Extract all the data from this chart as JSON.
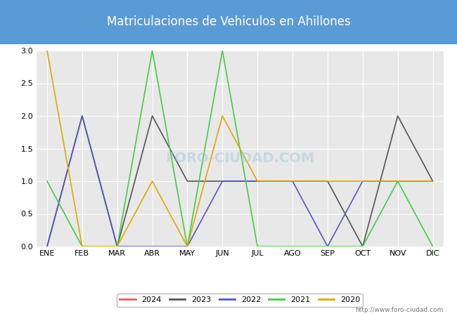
{
  "title": "Matriculaciones de Vehiculos en Ahillones",
  "months": [
    "ENE",
    "FEB",
    "MAR",
    "ABR",
    "MAY",
    "JUN",
    "JUL",
    "AGO",
    "SEP",
    "OCT",
    "NOV",
    "DIC"
  ],
  "series": {
    "2024": {
      "color": "#e06060",
      "data": [
        0,
        null,
        null,
        null,
        null,
        null,
        null,
        null,
        null,
        null,
        null,
        null
      ]
    },
    "2023": {
      "color": "#555555",
      "data": [
        0,
        2,
        0,
        2,
        1,
        1,
        1,
        1,
        1,
        0,
        2,
        1
      ]
    },
    "2022": {
      "color": "#5555cc",
      "data": [
        0,
        2,
        0,
        0,
        0,
        1,
        1,
        1,
        0,
        1,
        1,
        1
      ]
    },
    "2021": {
      "color": "#44cc44",
      "data": [
        1,
        0,
        0,
        3,
        0,
        3,
        0,
        0,
        0,
        0,
        1,
        0
      ]
    },
    "2020": {
      "color": "#ddaa00",
      "data": [
        3,
        0,
        0,
        1,
        0,
        2,
        1,
        1,
        1,
        1,
        1,
        1
      ]
    }
  },
  "ylim": [
    0.0,
    3.0
  ],
  "yticks": [
    0.0,
    0.5,
    1.0,
    1.5,
    2.0,
    2.5,
    3.0
  ],
  "title_bg_color": "#5b9bd5",
  "title_text_color": "#ffffff",
  "plot_bg_color": "#e8e8e8",
  "grid_color": "#ffffff",
  "watermark_text": "FORO-CIUDAD.COM",
  "watermark_url": "http://www.foro-ciudad.com",
  "legend_years": [
    "2024",
    "2023",
    "2022",
    "2021",
    "2020"
  ],
  "title_fontsize": 12,
  "tick_fontsize": 8,
  "legend_fontsize": 8
}
